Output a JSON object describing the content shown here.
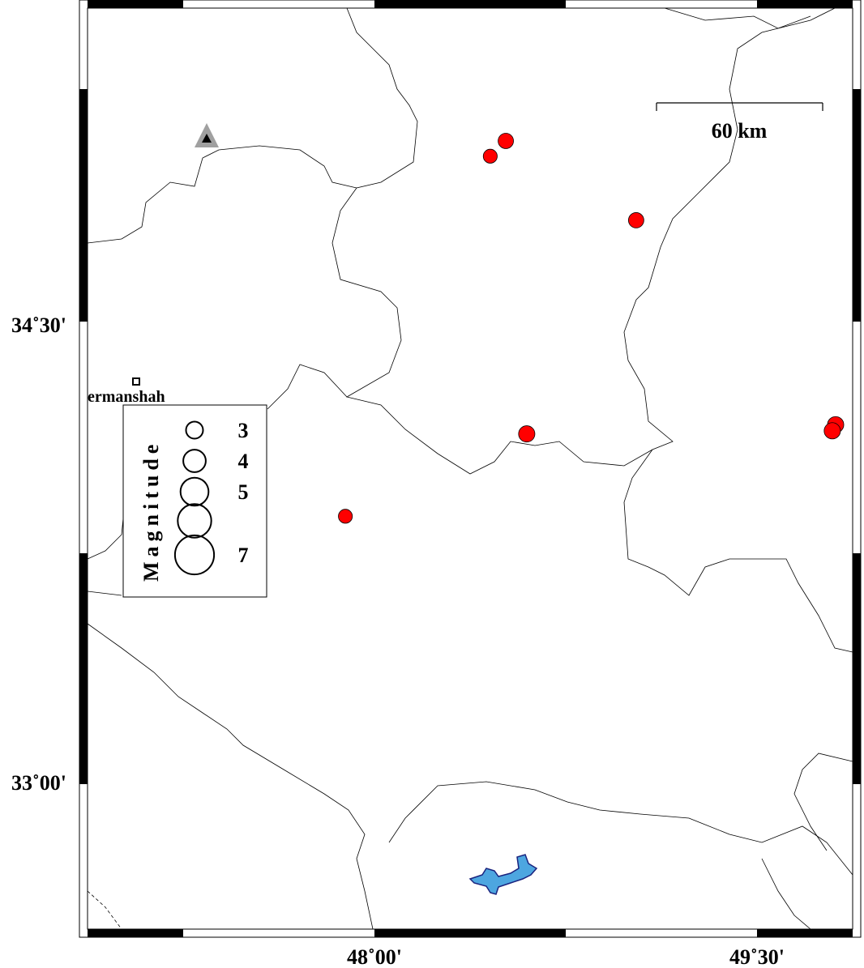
{
  "map": {
    "lon_range": [
      47.45,
      49.9
    ],
    "lat_range": [
      32.53,
      35.73
    ],
    "lon_ticks": [
      {
        "value": 48.0,
        "label": "48˚00'"
      },
      {
        "value": 49.5,
        "label": "49˚30'"
      }
    ],
    "lat_ticks": [
      {
        "value": 34.5,
        "label": "34˚30'"
      },
      {
        "value": 33.0,
        "label": "33˚00'"
      }
    ],
    "event_color": "#ff0000",
    "lake_color": "#4da6e0",
    "station_color": "#a0a0a0"
  },
  "scale_bar": {
    "label": "60 km"
  },
  "city": {
    "label": "ermanshah",
    "icon": "square-marker-icon"
  },
  "station": {
    "icon": "triangle-station-icon"
  },
  "legend": {
    "title": "Magnitude",
    "entries": [
      {
        "magnitude": 3,
        "label": "3"
      },
      {
        "magnitude": 4,
        "label": "4"
      },
      {
        "magnitude": 5,
        "label": "5"
      },
      {
        "magnitude": 6,
        "label": ""
      },
      {
        "magnitude": 7,
        "label": "7"
      }
    ]
  },
  "events": [
    {
      "lon": 48.515,
      "lat": 35.1,
      "magnitude": 2.9
    },
    {
      "lon": 48.454,
      "lat": 35.05,
      "magnitude": 2.6
    },
    {
      "lon": 49.026,
      "lat": 34.84,
      "magnitude": 2.9
    },
    {
      "lon": 48.597,
      "lat": 34.14,
      "magnitude": 3.1
    },
    {
      "lon": 47.886,
      "lat": 33.87,
      "magnitude": 2.6
    },
    {
      "lon": 49.808,
      "lat": 34.17,
      "magnitude": 3.1
    },
    {
      "lon": 49.795,
      "lat": 34.15,
      "magnitude": 3.1
    }
  ]
}
